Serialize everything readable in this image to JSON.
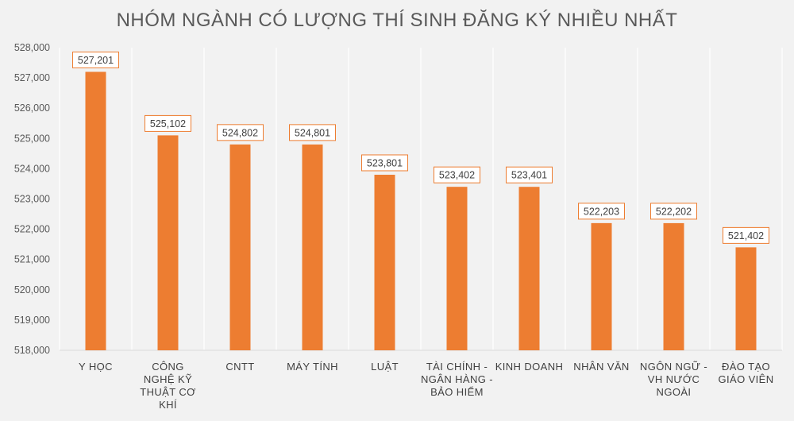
{
  "chart_data": {
    "type": "bar",
    "title": "NHÓM NGÀNH CÓ LƯỢNG THÍ SINH ĐĂNG KÝ NHIỀU NHẤT",
    "xlabel": "",
    "ylabel": "",
    "ylim": [
      518000,
      528000
    ],
    "yticks": [
      518000,
      519000,
      520000,
      521000,
      522000,
      523000,
      524000,
      525000,
      526000,
      527000,
      528000
    ],
    "ytick_labels": [
      "518,000",
      "519,000",
      "520,000",
      "521,000",
      "522,000",
      "523,000",
      "524,000",
      "525,000",
      "526,000",
      "527,000",
      "528,000"
    ],
    "categories": [
      [
        "Y HỌC"
      ],
      [
        "CÔNG",
        "NGHỆ KỸ",
        "THUẬT CƠ",
        "KHÍ"
      ],
      [
        "CNTT"
      ],
      [
        "MÁY TÍNH"
      ],
      [
        "LUẬT"
      ],
      [
        "TÀI CHÍNH -",
        "NGÂN HÀNG -",
        "BẢO HIỂM"
      ],
      [
        "KINH DOANH"
      ],
      [
        "NHÂN VĂN"
      ],
      [
        "NGÔN NGỮ -",
        "VH NƯỚC",
        "NGOÀI"
      ],
      [
        "ĐÀO TẠO",
        "GIÁO VIÊN"
      ]
    ],
    "values": [
      527201,
      525102,
      524802,
      524801,
      523801,
      523402,
      523401,
      522203,
      522202,
      521402
    ],
    "data_labels": [
      "527,201",
      "525,102",
      "524,802",
      "524,801",
      "523,801",
      "523,402",
      "523,401",
      "522,203",
      "522,202",
      "521,402"
    ],
    "grid": "vertical",
    "legend": "none",
    "colors": {
      "bar": "#ed7d31",
      "label_border": "#ed7d31",
      "grid": "#ffffff",
      "background": "#f2f2f2",
      "text": "#595959"
    }
  }
}
